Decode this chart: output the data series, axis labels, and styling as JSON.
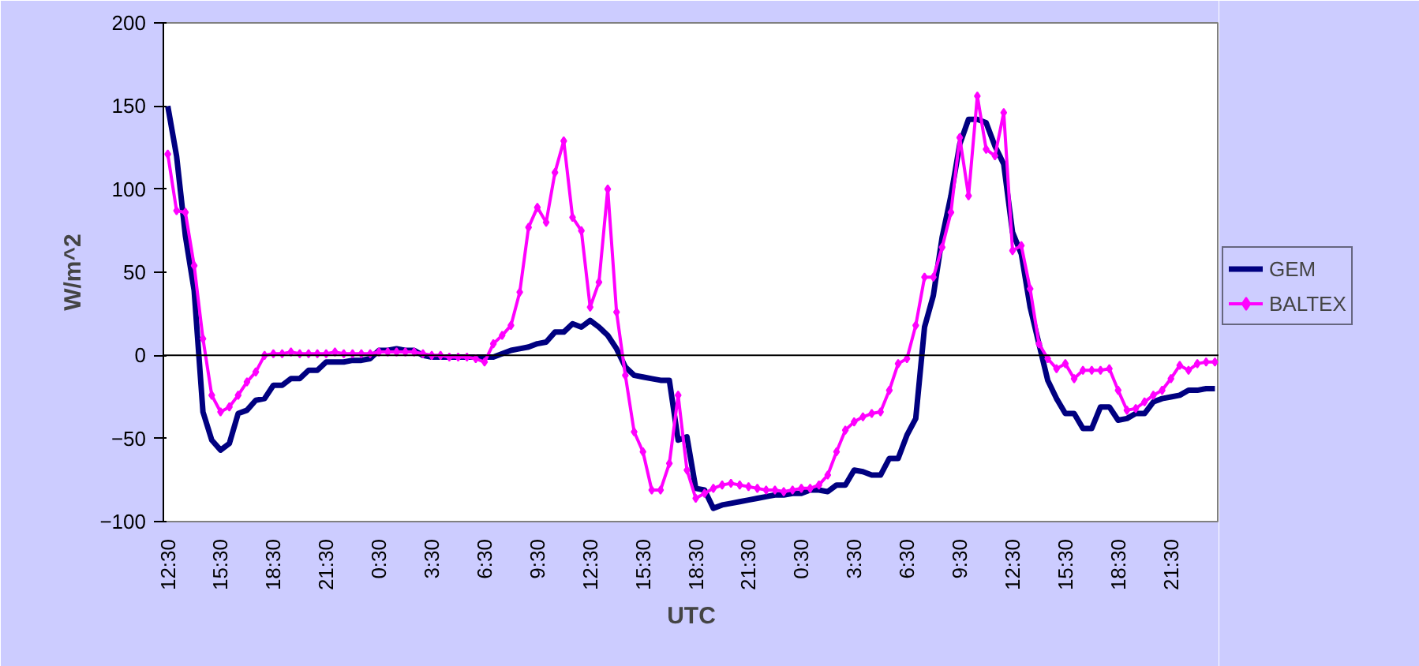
{
  "chart_data": {
    "type": "line",
    "xlabel": "UTC",
    "ylabel": "W/m^2",
    "categories": [
      "12:30",
      null,
      null,
      null,
      null,
      null,
      "15:30",
      null,
      null,
      null,
      null,
      null,
      "18:30",
      null,
      null,
      null,
      null,
      null,
      "21:30",
      null,
      null,
      null,
      null,
      null,
      "0:30",
      null,
      null,
      null,
      null,
      null,
      "3:30",
      null,
      null,
      null,
      null,
      null,
      "6:30",
      null,
      null,
      null,
      null,
      null,
      "9:30",
      null,
      null,
      null,
      null,
      null,
      "12:30",
      null,
      null,
      null,
      null,
      null,
      "15:30",
      null,
      null,
      null,
      null,
      null,
      "18:30",
      null,
      null,
      null,
      null,
      null,
      "21:30",
      null,
      null,
      null,
      null,
      null,
      "0:30",
      null,
      null,
      null,
      null,
      null,
      "3:30",
      null,
      null,
      null,
      null,
      null,
      "6:30",
      null,
      null,
      null,
      null,
      null,
      "9:30",
      null,
      null,
      null,
      null,
      null,
      "12:30",
      null,
      null,
      null,
      null,
      null,
      "15:30",
      null,
      null,
      null,
      null,
      null,
      "18:30",
      null,
      null,
      null,
      null,
      null,
      "21:30",
      null,
      null,
      null,
      null,
      null
    ],
    "series": [
      {
        "name": "GEM",
        "color": "#000080",
        "marker": "none",
        "values": [
          150,
          120,
          72,
          39,
          -34,
          -51,
          -57,
          -53,
          -35,
          -33,
          -27,
          -26,
          -18,
          -18,
          -14,
          -14,
          -9,
          -9,
          -4,
          -4,
          -4,
          -3,
          -3,
          -2,
          3,
          3,
          4,
          3,
          3,
          0,
          -1,
          -1,
          -1,
          -1,
          -1,
          -1,
          -1,
          -1,
          1,
          3,
          4,
          5,
          7,
          8,
          14,
          14,
          19,
          17,
          21,
          17,
          12,
          4,
          -7,
          -12,
          -13,
          -14,
          -15,
          -15,
          -51,
          -49,
          -80,
          -81,
          -92,
          -90,
          -89,
          -88,
          -87,
          -86,
          -85,
          -84,
          -84,
          -83,
          -83,
          -81,
          -81,
          -82,
          -78,
          -78,
          -69,
          -70,
          -72,
          -72,
          -62,
          -62,
          -48,
          -38,
          17,
          36,
          71,
          96,
          127,
          142,
          142,
          140,
          126,
          115,
          74,
          61,
          29,
          7,
          -15,
          -26,
          -35,
          -35,
          -44,
          -44,
          -31,
          -31,
          -39,
          -38,
          -35,
          -35,
          -28,
          -26,
          -25,
          -24,
          -21,
          -21,
          -20,
          -20
        ]
      },
      {
        "name": "BALTEX",
        "color": "#ff00ff",
        "marker": "diamond",
        "values": [
          121,
          87,
          86,
          54,
          10,
          -24,
          -34,
          -31,
          -24,
          -16,
          -10,
          0,
          1,
          1,
          2,
          1,
          1,
          1,
          1,
          2,
          1,
          1,
          1,
          1,
          2,
          2,
          2,
          2,
          2,
          1,
          0,
          0,
          -1,
          -1,
          -1,
          -2,
          -4,
          7,
          12,
          18,
          38,
          77,
          89,
          80,
          110,
          129,
          83,
          75,
          29,
          44,
          100,
          26,
          -12,
          -46,
          -58,
          -81,
          -81,
          -65,
          -24,
          -69,
          -86,
          -83,
          -80,
          -78,
          -77,
          -78,
          -79,
          -80,
          -81,
          -81,
          -82,
          -81,
          -80,
          -80,
          -78,
          -72,
          -58,
          -45,
          -40,
          -37,
          -35,
          -34,
          -21,
          -5,
          -2,
          18,
          47,
          47,
          65,
          86,
          131,
          96,
          156,
          124,
          120,
          146,
          63,
          66,
          40,
          7,
          -2,
          -8,
          -5,
          -14,
          -9,
          -9,
          -9,
          -8,
          -21,
          -33,
          -32,
          -28,
          -24,
          -21,
          -14,
          -6,
          -9,
          -5,
          -4,
          -4
        ]
      }
    ],
    "ylim": [
      -100,
      200
    ],
    "yticks": [
      -100,
      -50,
      0,
      50,
      100,
      150,
      200
    ],
    "ref_lines": [
      {
        "axis": "y",
        "value": 0,
        "color": "#000000"
      }
    ],
    "grid": false,
    "legend": "right",
    "line_style": "solid"
  }
}
